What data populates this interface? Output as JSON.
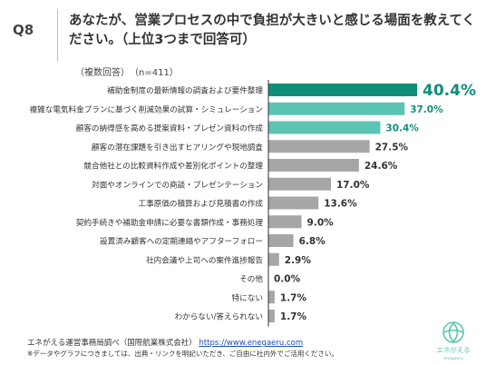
{
  "header": {
    "q_label": "Q8",
    "title": "あなたが、営業プロセスの中で負担が大きいと感じる場面を教えてください。（上位3つまで回答可）",
    "subtitle": "（複数回答）　（n=411）"
  },
  "chart_data": {
    "type": "bar",
    "orientation": "horizontal",
    "categories": [
      "補助金制度の最新情報の調査および要件整理",
      "複雑な電気料金プランに基づく削減効果の試算・シミュレーション",
      "顧客の納得感を高める提案資料・プレゼン資料の作成",
      "顧客の潜在課題を引き出すヒアリングや現地調査",
      "競合他社との比較資料作成や差別化ポイントの整理",
      "対面やオンラインでの商談・プレゼンテーション",
      "工事原価の積算および見積書の作成",
      "契約手続きや補助金申請に必要な書類作成・事務処理",
      "設置済み顧客への定期連絡やアフターフォロー",
      "社内会議や上司への案件進捗報告",
      "その他",
      "特にない",
      "わからない/答えられない"
    ],
    "values": [
      40.4,
      37.0,
      30.4,
      27.5,
      24.6,
      17.0,
      13.6,
      9.0,
      6.8,
      2.9,
      0.0,
      1.7,
      1.7
    ],
    "value_labels": [
      "40.4%",
      "37.0%",
      "30.4%",
      "27.5%",
      "24.6%",
      "17.0%",
      "13.6%",
      "9.0%",
      "6.8%",
      "2.9%",
      "0.0%",
      "1.7%",
      "1.7%"
    ],
    "xlim": [
      0,
      40.4
    ],
    "colors": {
      "top1": "#0f8f7a",
      "top2_3": "#5bc4b3",
      "others": "#a6a6a6",
      "top1_label": "#0f8f7a",
      "top_label": "#0f8f7a",
      "other_label": "#333333",
      "axis": "#333333"
    }
  },
  "footer": {
    "source_prefix": "エネがえる運営事務局調べ（国際航業株式会社）",
    "url": "https://www.enegaeru.com",
    "note": "※データやグラフにつきましては、出典・リンクを明記いただき、ご自由に社内外でご活用ください。"
  },
  "logo": {
    "text_ja": "エネがえる",
    "text_en": "enegaeru",
    "color": "#5bc4b3"
  }
}
